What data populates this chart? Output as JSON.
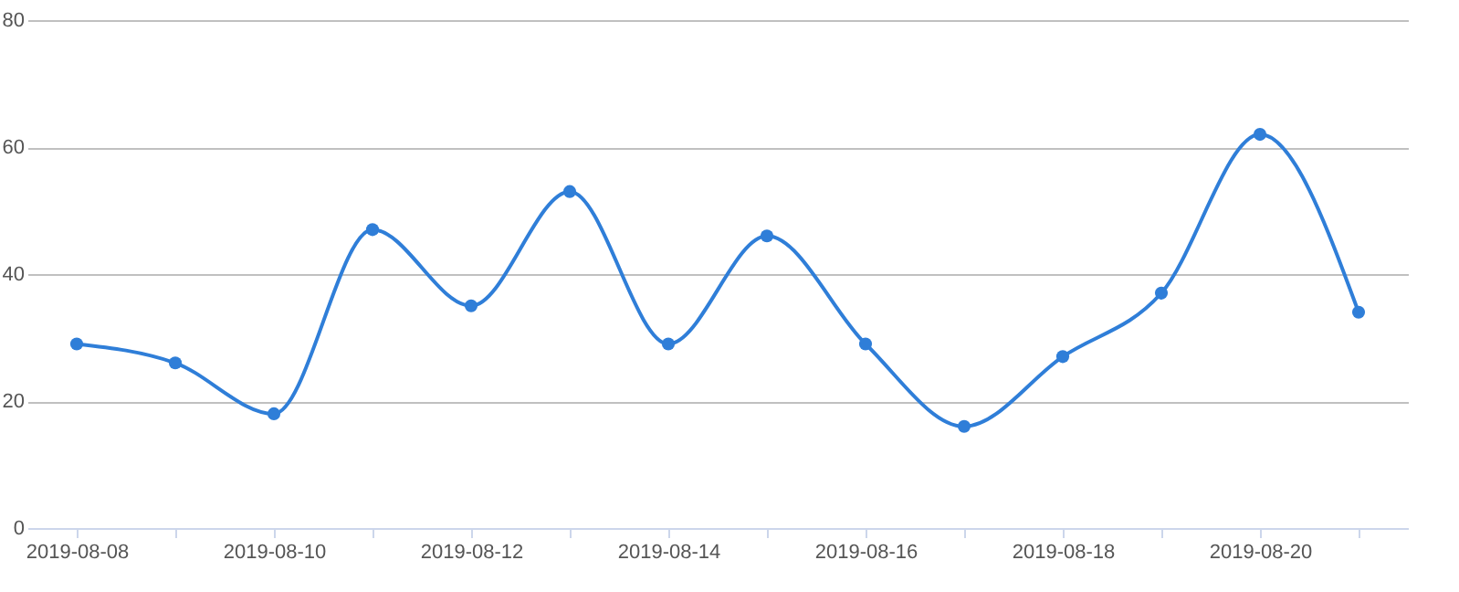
{
  "chart_data": {
    "type": "line",
    "categories": [
      "2019-08-08",
      null,
      "2019-08-10",
      null,
      "2019-08-12",
      null,
      "2019-08-14",
      null,
      "2019-08-16",
      null,
      "2019-08-18",
      null,
      "2019-08-20",
      null
    ],
    "series": [
      {
        "color": "#2f7ed8",
        "values": [
          29,
          26,
          18,
          47,
          35,
          53,
          29,
          46,
          29,
          16,
          27,
          37,
          62,
          34
        ]
      }
    ],
    "ylim": [
      0,
      80
    ],
    "yticks": [
      0,
      20,
      40,
      60,
      80
    ],
    "grid": "y",
    "marker": "circle",
    "line_style": "solid"
  }
}
